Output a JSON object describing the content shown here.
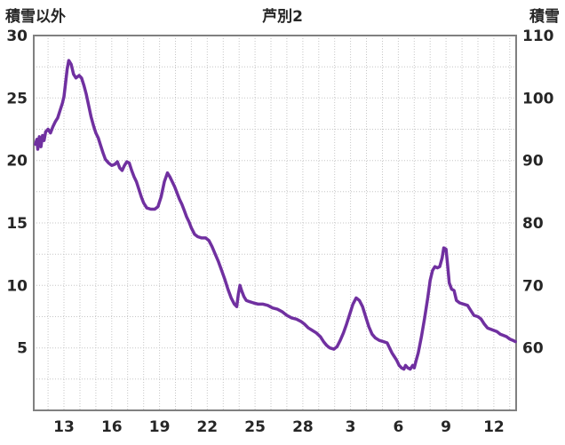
{
  "colors": {
    "series_line": "#7030A0",
    "grid": "#c6c6c6",
    "plot_border": "#808080",
    "text": "#262626",
    "background": "#ffffff"
  },
  "chart_data": {
    "type": "line",
    "title": "芦別2",
    "left_axis": {
      "label": "積雪以外",
      "min": 0,
      "max": 30,
      "ticks": [
        5,
        10,
        15,
        20,
        25,
        30
      ]
    },
    "right_axis": {
      "label": "積雪",
      "min": 50,
      "max": 110,
      "ticks": [
        60,
        70,
        80,
        90,
        100,
        110
      ]
    },
    "x_axis": {
      "min": 11.1,
      "max": 41.4,
      "tick_days": [
        13,
        16,
        19,
        22,
        25,
        28,
        31,
        34,
        37,
        40
      ],
      "tick_labels": [
        "13",
        "16",
        "19",
        "22",
        "25",
        "28",
        "3",
        "6",
        "9",
        "12"
      ]
    },
    "grid": {
      "x_minor_step": 1,
      "y_minor_step": 2.5,
      "style": "dotted"
    },
    "legend": "none",
    "series": [
      {
        "name": "積雪",
        "color": "#7030A0",
        "values_read_on_axis": "left",
        "points": [
          [
            11.2,
            21.3
          ],
          [
            11.3,
            21.7
          ],
          [
            11.35,
            20.9
          ],
          [
            11.45,
            21.9
          ],
          [
            11.55,
            21.1
          ],
          [
            11.65,
            22.0
          ],
          [
            11.75,
            21.6
          ],
          [
            11.85,
            22.3
          ],
          [
            12.0,
            22.5
          ],
          [
            12.15,
            22.2
          ],
          [
            12.3,
            22.7
          ],
          [
            12.45,
            23.1
          ],
          [
            12.6,
            23.4
          ],
          [
            12.75,
            24.0
          ],
          [
            12.9,
            24.6
          ],
          [
            13.0,
            25.1
          ],
          [
            13.1,
            26.2
          ],
          [
            13.2,
            27.3
          ],
          [
            13.3,
            28.0
          ],
          [
            13.45,
            27.7
          ],
          [
            13.6,
            26.9
          ],
          [
            13.75,
            26.6
          ],
          [
            13.95,
            26.8
          ],
          [
            14.1,
            26.6
          ],
          [
            14.25,
            26.0
          ],
          [
            14.4,
            25.3
          ],
          [
            14.55,
            24.4
          ],
          [
            14.7,
            23.5
          ],
          [
            14.85,
            22.8
          ],
          [
            15.0,
            22.2
          ],
          [
            15.15,
            21.8
          ],
          [
            15.3,
            21.2
          ],
          [
            15.45,
            20.6
          ],
          [
            15.6,
            20.1
          ],
          [
            15.8,
            19.8
          ],
          [
            16.0,
            19.6
          ],
          [
            16.2,
            19.7
          ],
          [
            16.35,
            19.9
          ],
          [
            16.5,
            19.4
          ],
          [
            16.65,
            19.2
          ],
          [
            16.8,
            19.6
          ],
          [
            16.95,
            19.9
          ],
          [
            17.1,
            19.8
          ],
          [
            17.25,
            19.2
          ],
          [
            17.4,
            18.7
          ],
          [
            17.55,
            18.3
          ],
          [
            17.7,
            17.7
          ],
          [
            17.85,
            17.1
          ],
          [
            18.0,
            16.6
          ],
          [
            18.2,
            16.2
          ],
          [
            18.45,
            16.1
          ],
          [
            18.7,
            16.1
          ],
          [
            18.9,
            16.3
          ],
          [
            19.1,
            17.1
          ],
          [
            19.3,
            18.3
          ],
          [
            19.5,
            19.0
          ],
          [
            19.65,
            18.7
          ],
          [
            19.8,
            18.3
          ],
          [
            19.95,
            17.9
          ],
          [
            20.1,
            17.4
          ],
          [
            20.25,
            16.9
          ],
          [
            20.4,
            16.5
          ],
          [
            20.55,
            16.0
          ],
          [
            20.7,
            15.5
          ],
          [
            20.85,
            15.1
          ],
          [
            21.0,
            14.6
          ],
          [
            21.2,
            14.1
          ],
          [
            21.4,
            13.9
          ],
          [
            21.65,
            13.8
          ],
          [
            21.9,
            13.8
          ],
          [
            22.1,
            13.6
          ],
          [
            22.3,
            13.1
          ],
          [
            22.5,
            12.5
          ],
          [
            22.7,
            11.9
          ],
          [
            22.9,
            11.2
          ],
          [
            23.1,
            10.5
          ],
          [
            23.3,
            9.7
          ],
          [
            23.5,
            9.0
          ],
          [
            23.7,
            8.5
          ],
          [
            23.85,
            8.3
          ],
          [
            23.95,
            9.3
          ],
          [
            24.05,
            10.0
          ],
          [
            24.15,
            9.6
          ],
          [
            24.3,
            9.1
          ],
          [
            24.45,
            8.8
          ],
          [
            24.65,
            8.7
          ],
          [
            24.9,
            8.6
          ],
          [
            25.2,
            8.5
          ],
          [
            25.5,
            8.5
          ],
          [
            25.8,
            8.4
          ],
          [
            26.1,
            8.2
          ],
          [
            26.4,
            8.1
          ],
          [
            26.7,
            7.9
          ],
          [
            27.0,
            7.6
          ],
          [
            27.3,
            7.4
          ],
          [
            27.6,
            7.3
          ],
          [
            27.9,
            7.1
          ],
          [
            28.1,
            6.9
          ],
          [
            28.35,
            6.6
          ],
          [
            28.6,
            6.4
          ],
          [
            28.85,
            6.2
          ],
          [
            29.1,
            5.9
          ],
          [
            29.3,
            5.5
          ],
          [
            29.5,
            5.2
          ],
          [
            29.7,
            5.0
          ],
          [
            29.95,
            4.9
          ],
          [
            30.15,
            5.1
          ],
          [
            30.35,
            5.6
          ],
          [
            30.55,
            6.2
          ],
          [
            30.75,
            6.9
          ],
          [
            30.95,
            7.7
          ],
          [
            31.15,
            8.5
          ],
          [
            31.35,
            9.0
          ],
          [
            31.55,
            8.8
          ],
          [
            31.75,
            8.3
          ],
          [
            31.95,
            7.5
          ],
          [
            32.15,
            6.7
          ],
          [
            32.35,
            6.1
          ],
          [
            32.55,
            5.8
          ],
          [
            32.8,
            5.6
          ],
          [
            33.05,
            5.5
          ],
          [
            33.3,
            5.4
          ],
          [
            33.45,
            5.0
          ],
          [
            33.6,
            4.6
          ],
          [
            33.75,
            4.3
          ],
          [
            33.9,
            4.0
          ],
          [
            34.05,
            3.6
          ],
          [
            34.2,
            3.4
          ],
          [
            34.35,
            3.3
          ],
          [
            34.45,
            3.6
          ],
          [
            34.6,
            3.4
          ],
          [
            34.75,
            3.3
          ],
          [
            34.9,
            3.6
          ],
          [
            35.0,
            3.4
          ],
          [
            35.1,
            3.9
          ],
          [
            35.25,
            4.6
          ],
          [
            35.45,
            5.9
          ],
          [
            35.65,
            7.4
          ],
          [
            35.85,
            9.0
          ],
          [
            36.0,
            10.4
          ],
          [
            36.15,
            11.2
          ],
          [
            36.3,
            11.5
          ],
          [
            36.45,
            11.4
          ],
          [
            36.6,
            11.5
          ],
          [
            36.75,
            12.2
          ],
          [
            36.85,
            13.0
          ],
          [
            37.0,
            12.9
          ],
          [
            37.1,
            11.6
          ],
          [
            37.2,
            10.2
          ],
          [
            37.35,
            9.7
          ],
          [
            37.5,
            9.6
          ],
          [
            37.65,
            8.8
          ],
          [
            37.85,
            8.6
          ],
          [
            38.1,
            8.5
          ],
          [
            38.35,
            8.4
          ],
          [
            38.55,
            8.0
          ],
          [
            38.75,
            7.6
          ],
          [
            39.0,
            7.5
          ],
          [
            39.2,
            7.3
          ],
          [
            39.4,
            6.9
          ],
          [
            39.6,
            6.6
          ],
          [
            39.8,
            6.5
          ],
          [
            40.0,
            6.4
          ],
          [
            40.2,
            6.3
          ],
          [
            40.4,
            6.1
          ],
          [
            40.6,
            6.0
          ],
          [
            40.8,
            5.9
          ],
          [
            41.0,
            5.7
          ],
          [
            41.2,
            5.6
          ],
          [
            41.35,
            5.5
          ]
        ]
      }
    ]
  }
}
